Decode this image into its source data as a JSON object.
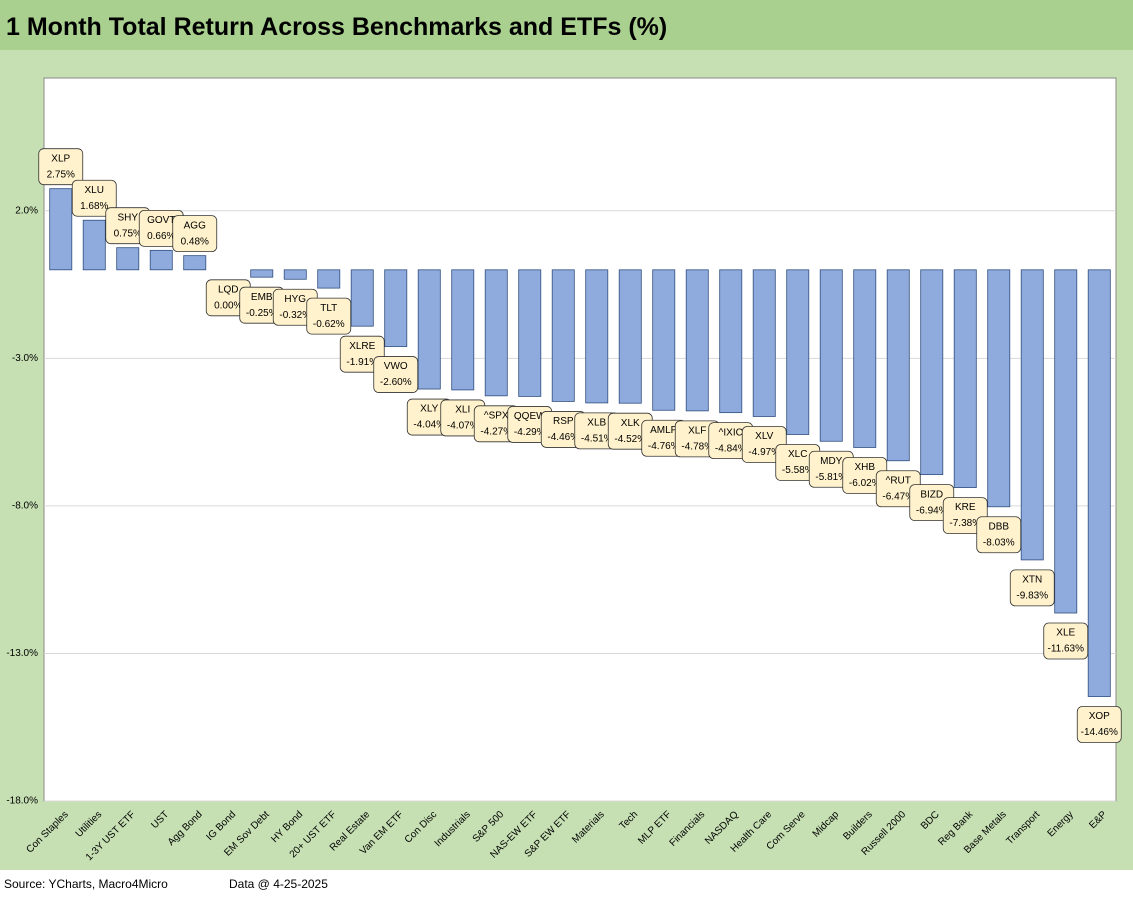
{
  "chart_data": {
    "type": "bar",
    "title": "1 Month Total Return Across Benchmarks and ETFs (%)",
    "categories": [
      "Con Staples",
      "Utilities",
      "1-3Y UST ETF",
      "UST",
      "Agg Bond",
      "IG Bond",
      "EM Sov Debt",
      "HY Bond",
      "20+ UST ETF",
      "Real Estate",
      "Van EM ETF",
      "Con Disc",
      "Industrials",
      "S&P 500",
      "NAS-EW ETF",
      "S&P EW ETF",
      "Materials",
      "Tech",
      "MLP ETF",
      "Financials",
      "NASDAQ",
      "Health Care",
      "Com Serve",
      "Midcap",
      "Builders",
      "Russell 2000",
      "BDC",
      "Reg Bank",
      "Base Metals",
      "Transport",
      "Energy",
      "E&P"
    ],
    "tickers": [
      "XLP",
      "XLU",
      "SHY",
      "GOVT",
      "AGG",
      "LQD",
      "EMB",
      "HYG",
      "TLT",
      "XLRE",
      "VWO",
      "XLY",
      "XLI",
      "^SPX",
      "QQEW",
      "RSP",
      "XLB",
      "XLK",
      "AMLP",
      "XLF",
      "^IXIC",
      "XLV",
      "XLC",
      "MDY",
      "XHB",
      "^RUT",
      "BIZD",
      "KRE",
      "DBB",
      "XTN",
      "XLE",
      "XOP"
    ],
    "values": [
      2.75,
      1.68,
      0.75,
      0.66,
      0.48,
      0.0,
      -0.25,
      -0.32,
      -0.62,
      -1.91,
      -2.6,
      -4.04,
      -4.07,
      -4.27,
      -4.29,
      -4.46,
      -4.51,
      -4.52,
      -4.76,
      -4.78,
      -4.84,
      -4.97,
      -5.58,
      -5.81,
      -6.02,
      -6.47,
      -6.94,
      -7.38,
      -8.03,
      -9.83,
      -11.63,
      -14.46
    ],
    "value_labels": [
      "2.75%",
      "1.68%",
      "0.75%",
      "0.66%",
      "0.48%",
      "0.00%",
      "-0.25%",
      "-0.32%",
      "-0.62%",
      "-1.91%",
      "-2.60%",
      "-4.04%",
      "-4.07%",
      "-4.27%",
      "-4.29%",
      "-4.46%",
      "-4.51%",
      "-4.52%",
      "-4.76%",
      "-4.78%",
      "-4.84%",
      "-4.97%",
      "-5.58%",
      "-5.81%",
      "-6.02%",
      "-6.47%",
      "-6.94%",
      "-7.38%",
      "-8.03%",
      "-9.83%",
      "-11.63%",
      "-14.46%"
    ],
    "color": "#8faadc",
    "ylim": [
      -18,
      6.5
    ],
    "yticks": [
      {
        "value": -18,
        "label": "-18.0%"
      },
      {
        "value": -13,
        "label": "-13.0%"
      },
      {
        "value": -8,
        "label": "-8.0%"
      },
      {
        "value": -3,
        "label": "-3.0%"
      },
      {
        "value": 2,
        "label": "2.0%"
      }
    ],
    "grid": true,
    "source": "Source: YCharts, Macro4Micro",
    "data_note": "Data @ 4-25-2025"
  }
}
